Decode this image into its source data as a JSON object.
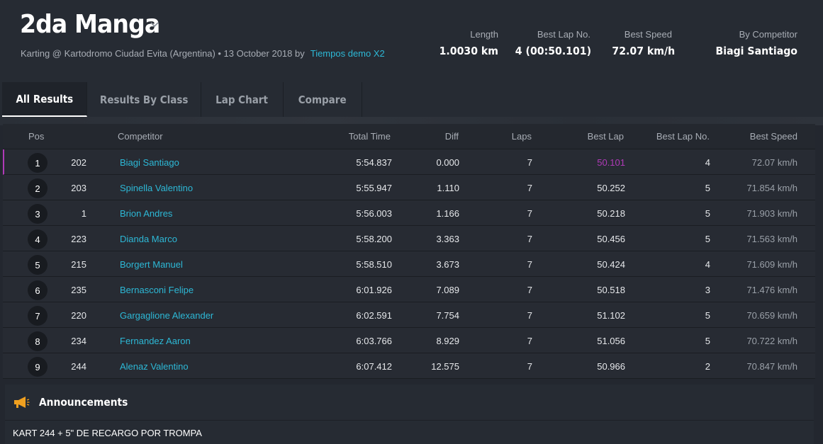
{
  "header": {
    "title": "2da Manga",
    "subtitle_prefix": "Karting @ Kartodromo Ciudad Evita (Argentina) • 13 October 2018 by",
    "subtitle_link": "Tiempos demo X2",
    "stats": [
      {
        "label": "Length",
        "value": "1.0030 km"
      },
      {
        "label": "Best Lap No.",
        "value": "4 (00:50.101)"
      },
      {
        "label": "Best Speed",
        "value": "72.07 km/h"
      },
      {
        "label": "By Competitor",
        "value": "Biagi Santiago"
      }
    ]
  },
  "tabs": [
    {
      "label": "All Results",
      "active": true
    },
    {
      "label": "Results By Class",
      "active": false
    },
    {
      "label": "Lap Chart",
      "active": false
    },
    {
      "label": "Compare",
      "active": false
    }
  ],
  "table": {
    "columns": [
      "Pos",
      "Competitor",
      "Total Time",
      "Diff",
      "Laps",
      "Best Lap",
      "Best Lap No.",
      "Best Speed"
    ],
    "rows": [
      {
        "pos": "1",
        "num": "202",
        "name": "Biagi Santiago",
        "total": "5:54.837",
        "diff": "0.000",
        "laps": "7",
        "best_lap": "50.101",
        "best_lap_no": "4",
        "speed": "72.07 km/h"
      },
      {
        "pos": "2",
        "num": "203",
        "name": "Spinella Valentino",
        "total": "5:55.947",
        "diff": "1.110",
        "laps": "7",
        "best_lap": "50.252",
        "best_lap_no": "5",
        "speed": "71.854 km/h"
      },
      {
        "pos": "3",
        "num": "1",
        "name": "Brion Andres",
        "total": "5:56.003",
        "diff": "1.166",
        "laps": "7",
        "best_lap": "50.218",
        "best_lap_no": "5",
        "speed": "71.903 km/h"
      },
      {
        "pos": "4",
        "num": "223",
        "name": "Dianda Marco",
        "total": "5:58.200",
        "diff": "3.363",
        "laps": "7",
        "best_lap": "50.456",
        "best_lap_no": "5",
        "speed": "71.563 km/h"
      },
      {
        "pos": "5",
        "num": "215",
        "name": "Borgert Manuel",
        "total": "5:58.510",
        "diff": "3.673",
        "laps": "7",
        "best_lap": "50.424",
        "best_lap_no": "4",
        "speed": "71.609 km/h"
      },
      {
        "pos": "6",
        "num": "235",
        "name": "Bernasconi Felipe",
        "total": "6:01.926",
        "diff": "7.089",
        "laps": "7",
        "best_lap": "50.518",
        "best_lap_no": "3",
        "speed": "71.476 km/h"
      },
      {
        "pos": "7",
        "num": "220",
        "name": "Gargaglione Alexander",
        "total": "6:02.591",
        "diff": "7.754",
        "laps": "7",
        "best_lap": "51.102",
        "best_lap_no": "5",
        "speed": "70.659 km/h"
      },
      {
        "pos": "8",
        "num": "234",
        "name": "Fernandez Aaron",
        "total": "6:03.766",
        "diff": "8.929",
        "laps": "7",
        "best_lap": "51.056",
        "best_lap_no": "5",
        "speed": "70.722 km/h"
      },
      {
        "pos": "9",
        "num": "244",
        "name": "Alenaz Valentino",
        "total": "6:07.412",
        "diff": "12.575",
        "laps": "7",
        "best_lap": "50.966",
        "best_lap_no": "2",
        "speed": "70.847 km/h"
      }
    ]
  },
  "announcements": {
    "title": "Announcements",
    "icon": "megaphone-icon",
    "text": "KART 244 + 5\" DE RECARGO POR TROMPA"
  },
  "colors": {
    "accent": "#2db8d6",
    "best_lap_highlight": "#b03ab8",
    "announcement_icon": "#f0a020"
  }
}
